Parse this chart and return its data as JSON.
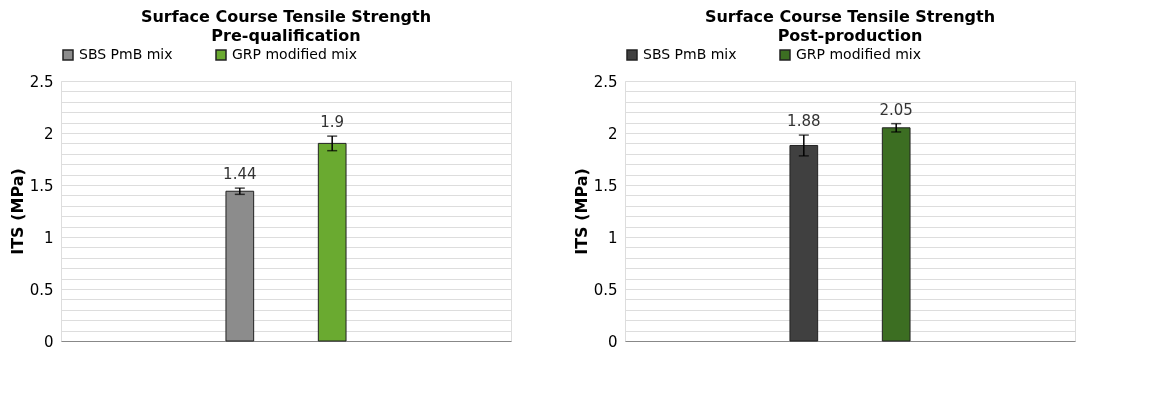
{
  "chart_data": [
    {
      "type": "bar",
      "title": "Surface Course Tensile Strength",
      "subtitle": "Pre-qualification",
      "ylabel": "ITS  (MPa)",
      "categories": [
        null
      ],
      "series": [
        {
          "name": "SBS PmB mix",
          "color": "#8c8c8c",
          "values": [
            1.44
          ],
          "errors": [
            0.03
          ]
        },
        {
          "name": "GRP modified mix",
          "color": "#6aaa30",
          "values": [
            1.9
          ],
          "errors": [
            0.07
          ]
        }
      ],
      "ylim": [
        0,
        2.5
      ],
      "yticks": [
        0,
        {
          "value": 0.1,
          "label": null
        },
        {
          "value": 0.2,
          "label": null
        },
        {
          "value": 0.3,
          "label": null
        },
        {
          "value": 0.4,
          "label": null
        },
        0.5,
        {
          "value": 0.6,
          "label": null
        },
        {
          "value": 0.7,
          "label": null
        },
        {
          "value": 0.8,
          "label": null
        },
        {
          "value": 0.9,
          "label": null
        },
        1,
        {
          "value": 1.1,
          "label": null
        },
        {
          "value": 1.2,
          "label": null
        },
        {
          "value": 1.3,
          "label": null
        },
        {
          "value": 1.4,
          "label": null
        },
        1.5,
        {
          "value": 1.6,
          "label": null
        },
        {
          "value": 1.7,
          "label": null
        },
        {
          "value": 1.8,
          "label": null
        },
        {
          "value": 1.9,
          "label": null
        },
        2,
        {
          "value": 2.1,
          "label": null
        },
        {
          "value": 2.2,
          "label": null
        },
        {
          "value": 2.3,
          "label": null
        },
        {
          "value": 2.4,
          "label": null
        },
        2.5
      ],
      "grid": "y",
      "legend": "top",
      "data_labels": true
    },
    {
      "type": "bar",
      "title": "Surface Course Tensile Strength",
      "subtitle": "Post-production",
      "ylabel": "ITS (MPa)",
      "categories": [
        null
      ],
      "series": [
        {
          "name": "SBS PmB mix",
          "color": "#404040",
          "values": [
            1.88
          ],
          "errors": [
            0.1
          ]
        },
        {
          "name": "GRP modified mix",
          "color": "#3c6e22",
          "values": [
            2.05
          ],
          "errors": [
            0.04
          ]
        }
      ],
      "ylim": [
        0,
        2.5
      ],
      "yticks": [
        0,
        {
          "value": 0.1,
          "label": null
        },
        {
          "value": 0.2,
          "label": null
        },
        {
          "value": 0.3,
          "label": null
        },
        {
          "value": 0.4,
          "label": null
        },
        0.5,
        {
          "value": 0.6,
          "label": null
        },
        {
          "value": 0.7,
          "label": null
        },
        {
          "value": 0.8,
          "label": null
        },
        {
          "value": 0.9,
          "label": null
        },
        1,
        {
          "value": 1.1,
          "label": null
        },
        {
          "value": 1.2,
          "label": null
        },
        {
          "value": 1.3,
          "label": null
        },
        {
          "value": 1.4,
          "label": null
        },
        1.5,
        {
          "value": 1.6,
          "label": null
        },
        {
          "value": 1.7,
          "label": null
        },
        {
          "value": 1.8,
          "label": null
        },
        {
          "value": 1.9,
          "label": null
        },
        2,
        {
          "value": 2.1,
          "label": null
        },
        {
          "value": 2.2,
          "label": null
        },
        {
          "value": 2.3,
          "label": null
        },
        {
          "value": 2.4,
          "label": null
        },
        2.5
      ],
      "grid": "y",
      "legend": "top",
      "data_labels": true
    }
  ]
}
